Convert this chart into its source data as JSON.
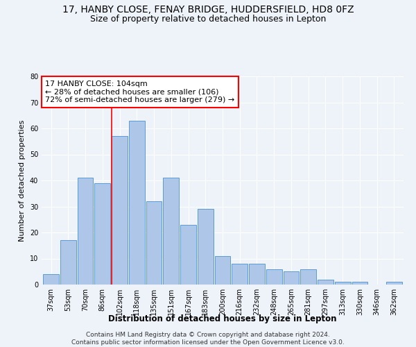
{
  "title1": "17, HANBY CLOSE, FENAY BRIDGE, HUDDERSFIELD, HD8 0FZ",
  "title2": "Size of property relative to detached houses in Lepton",
  "xlabel": "Distribution of detached houses by size in Lepton",
  "ylabel": "Number of detached properties",
  "bin_labels": [
    "37sqm",
    "53sqm",
    "70sqm",
    "86sqm",
    "102sqm",
    "118sqm",
    "135sqm",
    "151sqm",
    "167sqm",
    "183sqm",
    "200sqm",
    "216sqm",
    "232sqm",
    "248sqm",
    "265sqm",
    "281sqm",
    "297sqm",
    "313sqm",
    "330sqm",
    "346sqm",
    "362sqm"
  ],
  "bar_heights": [
    4,
    17,
    41,
    39,
    57,
    63,
    32,
    41,
    23,
    29,
    11,
    8,
    8,
    6,
    5,
    6,
    2,
    1,
    1,
    0,
    1
  ],
  "bar_color": "#aec6e8",
  "bar_edge_color": "#5b9bd5",
  "annotation_text": "17 HANBY CLOSE: 104sqm\n← 28% of detached houses are smaller (106)\n72% of semi-detached houses are larger (279) →",
  "annotation_box_color": "white",
  "annotation_box_edge_color": "red",
  "vline_color": "red",
  "vline_x_index": 4,
  "ylim": [
    0,
    80
  ],
  "yticks": [
    0,
    10,
    20,
    30,
    40,
    50,
    60,
    70,
    80
  ],
  "footer": "Contains HM Land Registry data © Crown copyright and database right 2024.\nContains public sector information licensed under the Open Government Licence v3.0.",
  "bg_color": "#eef2f9",
  "grid_color": "#ffffff",
  "title1_fontsize": 10,
  "title2_fontsize": 9,
  "xlabel_fontsize": 8.5,
  "ylabel_fontsize": 8,
  "tick_fontsize": 7,
  "annotation_fontsize": 8,
  "footer_fontsize": 6.5
}
